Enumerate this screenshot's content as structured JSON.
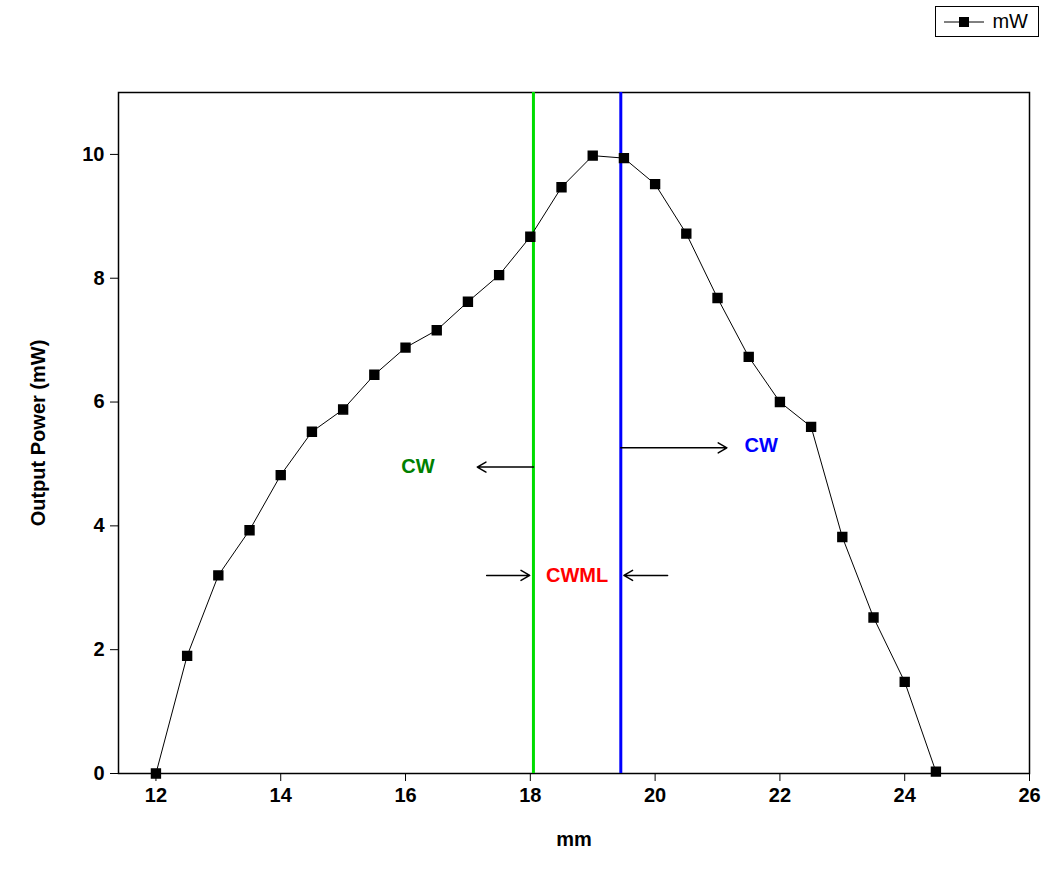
{
  "chart_data": {
    "type": "line",
    "x_label": "mm",
    "y_label": "Output Power (mW)",
    "x": [
      12,
      12.5,
      13,
      13.5,
      14,
      14.5,
      15,
      15.5,
      16,
      16.5,
      17,
      17.5,
      18,
      18.5,
      19,
      19.5,
      20,
      20.5,
      21,
      21.5,
      22,
      22.5,
      23,
      23.5,
      24,
      24.5
    ],
    "series": [
      {
        "name": "mW",
        "color": "#000000",
        "marker": "square",
        "values": [
          0,
          1.9,
          3.2,
          3.93,
          4.82,
          5.52,
          5.88,
          6.44,
          6.88,
          7.16,
          7.62,
          8.05,
          8.67,
          9.47,
          9.98,
          9.94,
          9.52,
          8.72,
          7.68,
          6.73,
          6.0,
          5.6,
          3.82,
          2.52,
          1.48,
          0.03
        ]
      }
    ],
    "xlim": [
      11.4,
      26
    ],
    "xticks": [
      12,
      14,
      16,
      18,
      20,
      22,
      24,
      26
    ],
    "ylim": [
      0,
      11
    ],
    "yticks": [
      0,
      2,
      4,
      6,
      8,
      10
    ],
    "legend": "top-right",
    "vertical_lines": [
      {
        "x": 18.05,
        "color": "#00dd00"
      },
      {
        "x": 19.45,
        "color": "#0000ff"
      }
    ],
    "annotations": [
      {
        "text": "CW",
        "color": "#008000",
        "x": 16.2,
        "y": 4.95
      },
      {
        "text": "CW",
        "color": "#0000ff",
        "x": 21.7,
        "y": 5.3
      },
      {
        "text": "CWML",
        "color": "#ff0000",
        "x": 18.75,
        "y": 3.2
      }
    ],
    "arrows": [
      {
        "x1": 18.05,
        "y1": 4.95,
        "x2": 17.15,
        "y2": 4.95
      },
      {
        "x1": 19.45,
        "y1": 5.26,
        "x2": 21.15,
        "y2": 5.26
      },
      {
        "x1": 17.3,
        "y1": 3.2,
        "x2": 17.99,
        "y2": 3.2
      },
      {
        "x1": 20.2,
        "y1": 3.2,
        "x2": 19.5,
        "y2": 3.2
      }
    ]
  }
}
